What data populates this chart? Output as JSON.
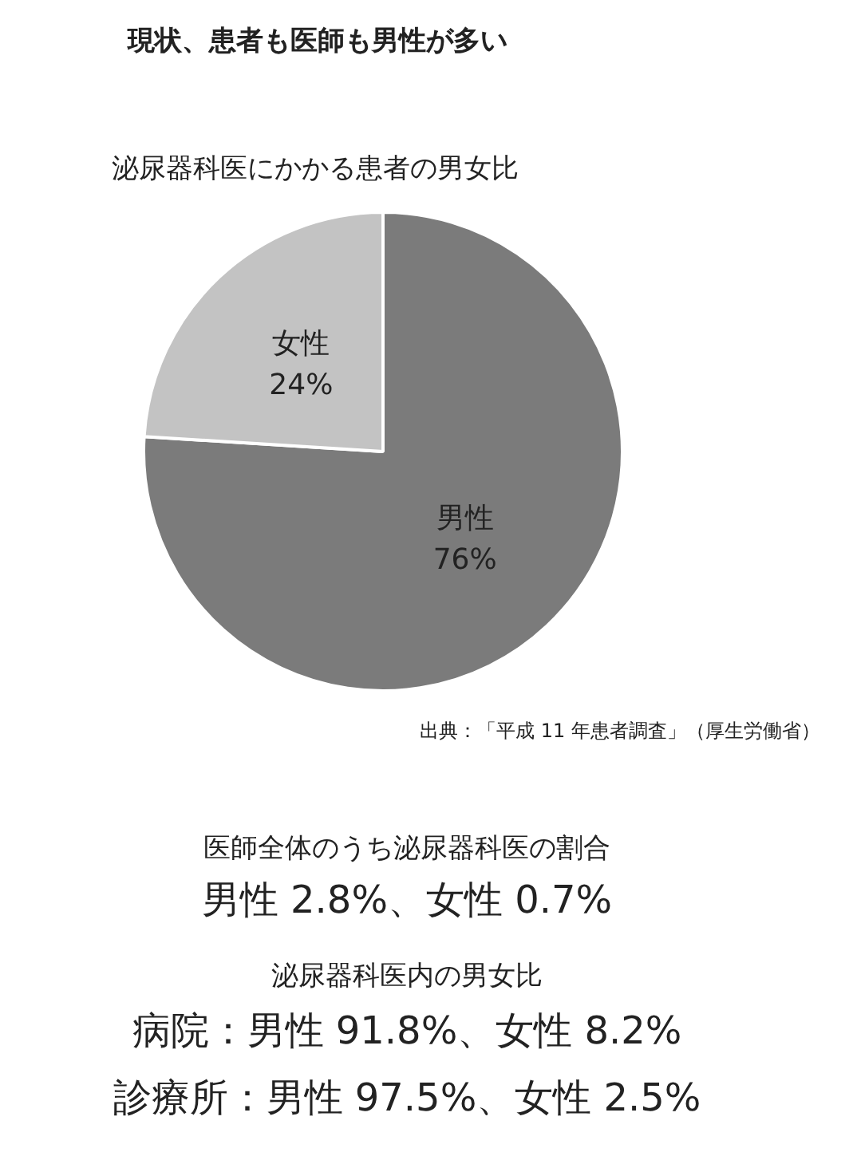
{
  "chart_data": {
    "type": "pie",
    "title": "現状、患者も医師も男性が多い",
    "subtitle": "泌尿器科医にかかる患者の男女比",
    "categories": [
      "男性",
      "女性"
    ],
    "values": [
      76,
      24
    ],
    "value_labels": [
      "76%",
      "24%"
    ],
    "colors": [
      "#7b7b7b",
      "#c3c3c3"
    ],
    "legend": false,
    "annotations": [
      "出典：「平成 11 年患者調査」（厚生労働省）",
      "医師全体のうち泌尿器科医の割合",
      "男性 2.8%、女性 0.7%",
      "泌尿器科医内の男女比",
      "病院：男性 91.8%、女性 8.2%",
      "診療所：男性 97.5%、女性 2.5%"
    ]
  }
}
